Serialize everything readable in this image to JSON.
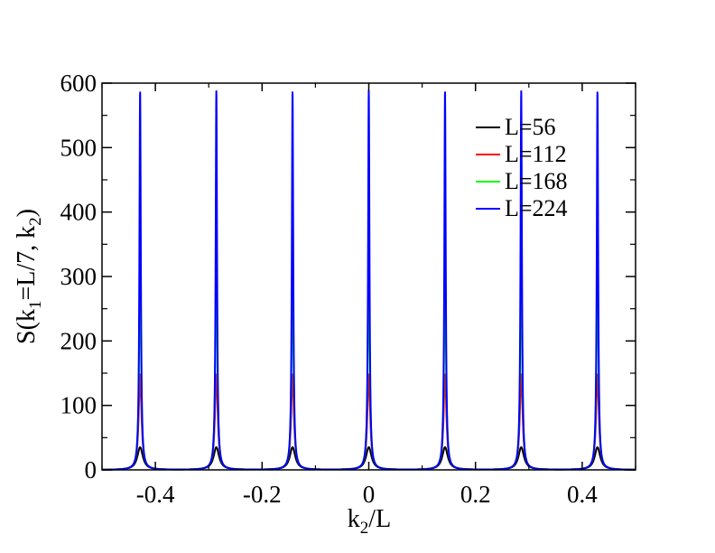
{
  "chart_data": {
    "type": "line",
    "title": "",
    "xlabel": {
      "main": "k",
      "sub": "2",
      "tail": "/L"
    },
    "ylabel": {
      "p1": "S(k",
      "s1": "1",
      "p2": "=L/7, k",
      "s2": "2",
      "p3": ")"
    },
    "xlim": [
      -0.5,
      0.5
    ],
    "ylim": [
      0,
      600
    ],
    "x_ticks": [
      -0.4,
      -0.2,
      0,
      0.2,
      0.4
    ],
    "x_tick_labels": [
      "-0.4",
      "-0.2",
      "0",
      "0.2",
      "0.4"
    ],
    "y_ticks": [
      0,
      100,
      200,
      300,
      400,
      500,
      600
    ],
    "y_tick_labels": [
      "0",
      "100",
      "200",
      "300",
      "400",
      "500",
      "600"
    ],
    "grid": false,
    "legend_position": "top-right",
    "peak_positions": [
      -0.4286,
      -0.2857,
      -0.1429,
      0.0,
      0.1429,
      0.2857,
      0.4286
    ],
    "series": [
      {
        "name": "L=56",
        "L": 56,
        "color": "#000000",
        "peak": 35
      },
      {
        "name": "L=112",
        "L": 112,
        "color": "#ff0000",
        "peak": 148
      },
      {
        "name": "L=168",
        "L": 168,
        "color": "#00ff00",
        "peak": 330
      },
      {
        "name": "L=224",
        "L": 224,
        "color": "#0000ff",
        "peak": 588
      }
    ]
  }
}
